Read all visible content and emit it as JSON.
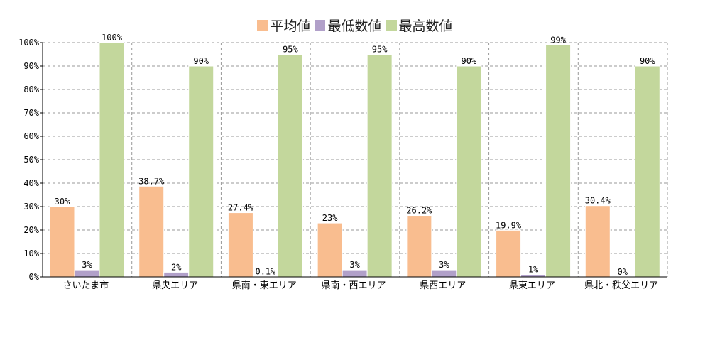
{
  "colors": {
    "平均値": "#f9bd8f",
    "最低数値": "#b1a0c9",
    "最高数値": "#c3d79c",
    "grid": "#999999",
    "axis": "#000000"
  },
  "chart_data": {
    "type": "bar",
    "title": "",
    "xlabel": "",
    "ylabel": "",
    "legend_position": "top-center",
    "grid": true,
    "ylim": [
      0,
      100
    ],
    "yticks": [
      0,
      10,
      20,
      30,
      40,
      50,
      60,
      70,
      80,
      90,
      100
    ],
    "ytick_labels": [
      "0%",
      "10%",
      "20%",
      "30%",
      "40%",
      "50%",
      "60%",
      "70%",
      "80%",
      "90%",
      "100%"
    ],
    "categories": [
      "さいたま市",
      "県央エリア",
      "県南・東エリア",
      "県南・西エリア",
      "県西エリア",
      "県東エリア",
      "県北・秩父エリア"
    ],
    "series": [
      {
        "name": "平均値",
        "values": [
          30,
          38.7,
          27.4,
          23,
          26.2,
          19.9,
          30.4
        ],
        "labels": [
          "30%",
          "38.7%",
          "27.4%",
          "23%",
          "26.2%",
          "19.9%",
          "30.4%"
        ]
      },
      {
        "name": "最低数値",
        "values": [
          3,
          2,
          0.1,
          3,
          3,
          1,
          0
        ],
        "labels": [
          "3%",
          "2%",
          "0.1%",
          "3%",
          "3%",
          "1%",
          "0%"
        ]
      },
      {
        "name": "最高数値",
        "values": [
          100,
          90,
          95,
          95,
          90,
          99,
          90
        ],
        "labels": [
          "100%",
          "90%",
          "95%",
          "95%",
          "90%",
          "99%",
          "90%"
        ]
      }
    ]
  }
}
